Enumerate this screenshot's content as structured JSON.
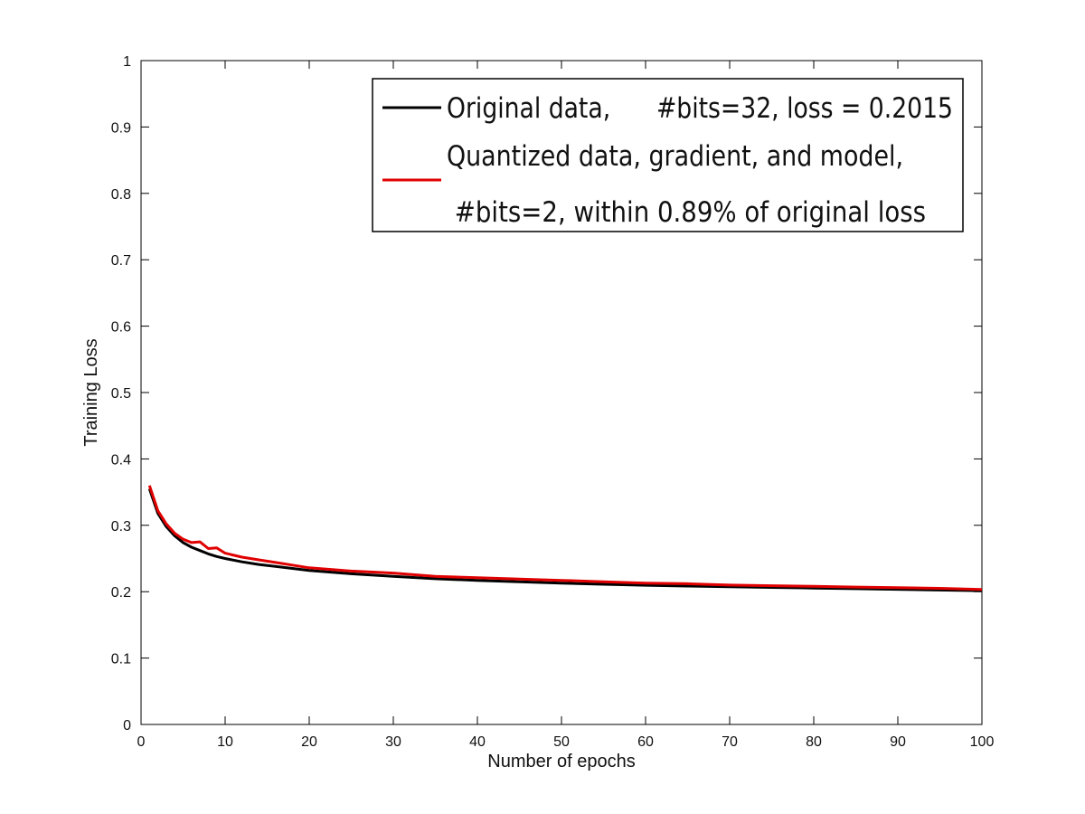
{
  "chart_data": {
    "type": "line",
    "title": "",
    "xlabel": "Number of epochs",
    "ylabel": "Training Loss",
    "xlim": [
      0,
      100
    ],
    "ylim": [
      0,
      1
    ],
    "grid": false,
    "legend_position": "top-right",
    "x_ticks": [
      "0",
      "10",
      "20",
      "30",
      "40",
      "50",
      "60",
      "70",
      "80",
      "90",
      "100"
    ],
    "y_ticks": [
      "0",
      "0.1",
      "0.2",
      "0.3",
      "0.4",
      "0.5",
      "0.6",
      "0.7",
      "0.8",
      "0.9",
      "1"
    ],
    "x": [
      1,
      2,
      3,
      4,
      5,
      6,
      7,
      8,
      9,
      10,
      12,
      14,
      16,
      18,
      20,
      25,
      30,
      35,
      40,
      45,
      50,
      55,
      60,
      65,
      70,
      75,
      80,
      85,
      90,
      95,
      100
    ],
    "series": [
      {
        "name_lines": [
          "Original data,      #bits=32, loss = 0.2015"
        ],
        "color": "#000000",
        "values": [
          0.355,
          0.318,
          0.298,
          0.284,
          0.274,
          0.267,
          0.262,
          0.257,
          0.253,
          0.25,
          0.245,
          0.241,
          0.238,
          0.235,
          0.232,
          0.227,
          0.223,
          0.2195,
          0.217,
          0.2148,
          0.213,
          0.2112,
          0.2097,
          0.2085,
          0.2074,
          0.2064,
          0.2054,
          0.2045,
          0.2036,
          0.2025,
          0.2015
        ]
      },
      {
        "name_lines": [
          "Quantized data, gradient, and model,",
          " #bits=2, within 0.89% of original loss"
        ],
        "color": "#e00000",
        "values": [
          0.36,
          0.322,
          0.302,
          0.288,
          0.279,
          0.274,
          0.275,
          0.265,
          0.266,
          0.258,
          0.252,
          0.248,
          0.244,
          0.24,
          0.236,
          0.231,
          0.228,
          0.223,
          0.221,
          0.219,
          0.217,
          0.215,
          0.213,
          0.212,
          0.21,
          0.209,
          0.208,
          0.207,
          0.206,
          0.205,
          0.2033
        ]
      }
    ]
  }
}
